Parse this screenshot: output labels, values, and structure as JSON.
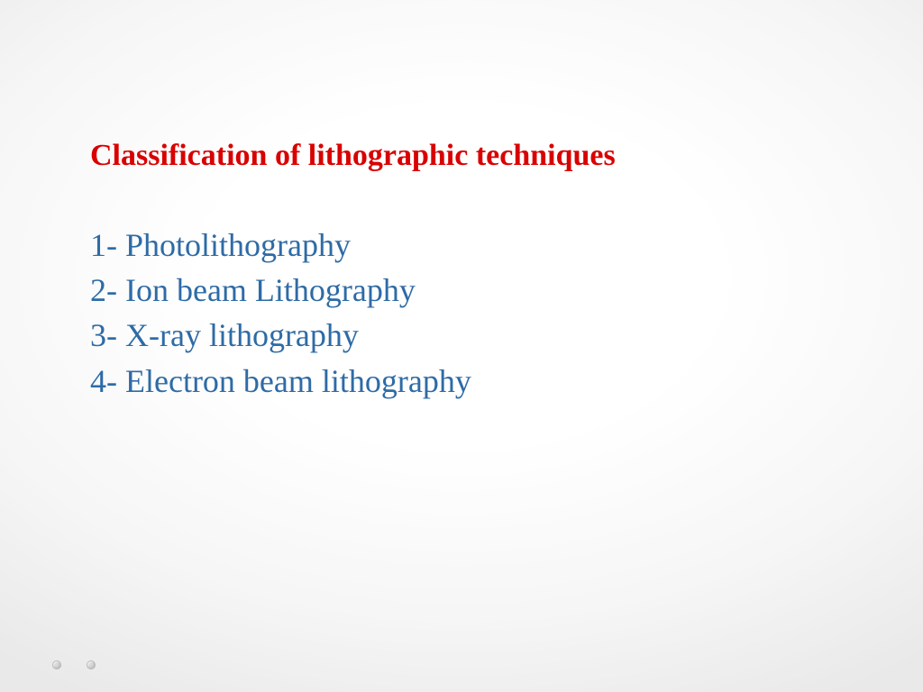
{
  "slide": {
    "title": "Classification of lithographic techniques",
    "title_color": "#d90000",
    "list_color": "#2e6ba6",
    "items": [
      "1- Photolithography",
      "2- Ion beam Lithography",
      "3- X-ray lithography",
      "4- Electron beam lithography"
    ],
    "title_fontsize": 34,
    "list_fontsize": 36,
    "background_center": "#ffffff",
    "background_edge": "#e9e9e9",
    "decorative_dots": [
      "#d9d9d9",
      "#d9d9d9"
    ]
  }
}
